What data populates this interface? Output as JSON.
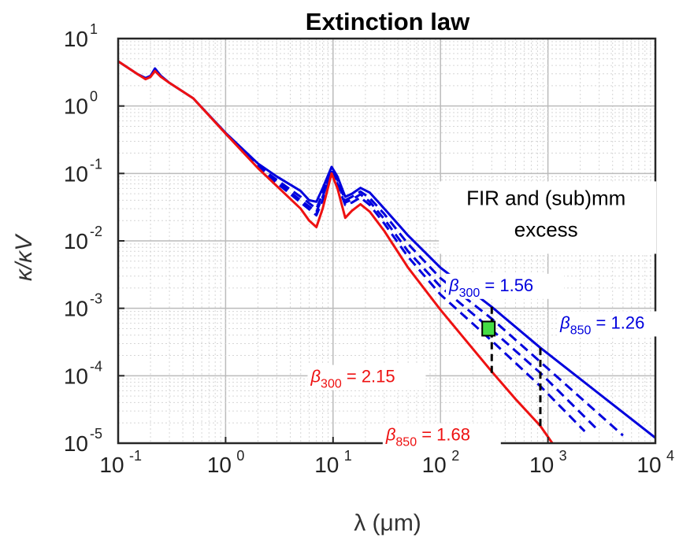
{
  "chart_data": {
    "type": "line",
    "title": "Extinction law",
    "xlabel": "λ (μm)",
    "ylabel": "κ/κV",
    "xscale": "log",
    "yscale": "log",
    "xlim": [
      0.1,
      10000
    ],
    "ylim": [
      1e-05,
      10
    ],
    "grid": true,
    "x_ticks": [
      {
        "base": "10",
        "exp": "-1"
      },
      {
        "base": "10",
        "exp": "0"
      },
      {
        "base": "10",
        "exp": "1"
      },
      {
        "base": "10",
        "exp": "2"
      },
      {
        "base": "10",
        "exp": "3"
      },
      {
        "base": "10",
        "exp": "4"
      }
    ],
    "y_ticks": [
      {
        "base": "10",
        "exp": "-5"
      },
      {
        "base": "10",
        "exp": "-4"
      },
      {
        "base": "10",
        "exp": "-3"
      },
      {
        "base": "10",
        "exp": "-2"
      },
      {
        "base": "10",
        "exp": "-1"
      },
      {
        "base": "10",
        "exp": "0"
      },
      {
        "base": "10",
        "exp": "1"
      }
    ],
    "colors": {
      "blue": "#0000dd",
      "red": "#ee1111",
      "marker": "#44dd44"
    },
    "series": [
      {
        "color": "blue",
        "style": "solid",
        "points": [
          [
            0.1,
            4.6
          ],
          [
            0.15,
            3.0
          ],
          [
            0.18,
            2.6
          ],
          [
            0.2,
            2.8
          ],
          [
            0.22,
            3.6
          ],
          [
            0.25,
            2.8
          ],
          [
            0.3,
            2.2
          ],
          [
            0.5,
            1.3
          ],
          [
            1,
            0.4
          ],
          [
            2,
            0.14
          ],
          [
            3,
            0.09
          ],
          [
            5,
            0.055
          ],
          [
            6,
            0.04
          ],
          [
            7,
            0.038
          ],
          [
            8,
            0.06
          ],
          [
            9.7,
            0.125
          ],
          [
            11,
            0.09
          ],
          [
            13,
            0.045
          ],
          [
            15,
            0.05
          ],
          [
            18,
            0.061
          ],
          [
            22,
            0.052
          ],
          [
            30,
            0.03
          ],
          [
            50,
            0.012
          ],
          [
            100,
            0.004
          ],
          [
            300,
            0.00105
          ],
          [
            850,
            0.00026
          ],
          [
            10000,
            1.2e-05
          ]
        ]
      },
      {
        "color": "blue",
        "style": "dashed",
        "points": [
          [
            1,
            0.39
          ],
          [
            2,
            0.13
          ],
          [
            3,
            0.08
          ],
          [
            5,
            0.045
          ],
          [
            7,
            0.03
          ],
          [
            8,
            0.05
          ],
          [
            9.7,
            0.115
          ],
          [
            11,
            0.08
          ],
          [
            13,
            0.04
          ],
          [
            15,
            0.045
          ],
          [
            18,
            0.054
          ],
          [
            22,
            0.043
          ],
          [
            30,
            0.025
          ],
          [
            50,
            0.009
          ],
          [
            100,
            0.0028
          ],
          [
            300,
            0.0007
          ],
          [
            850,
            0.00016
          ],
          [
            5000,
            1.3e-05
          ]
        ]
      },
      {
        "color": "blue",
        "style": "dashed",
        "points": [
          [
            1,
            0.39
          ],
          [
            2,
            0.13
          ],
          [
            3,
            0.075
          ],
          [
            5,
            0.04
          ],
          [
            7,
            0.027
          ],
          [
            8,
            0.045
          ],
          [
            9.7,
            0.11
          ],
          [
            11,
            0.075
          ],
          [
            13,
            0.037
          ],
          [
            15,
            0.041
          ],
          [
            18,
            0.049
          ],
          [
            22,
            0.038
          ],
          [
            30,
            0.021
          ],
          [
            50,
            0.007
          ],
          [
            100,
            0.0021
          ],
          [
            300,
            0.00048
          ],
          [
            850,
            0.00011
          ],
          [
            3000,
            1.5e-05
          ]
        ]
      },
      {
        "color": "blue",
        "style": "dashed",
        "points": [
          [
            1,
            0.39
          ],
          [
            2,
            0.13
          ],
          [
            3,
            0.072
          ],
          [
            5,
            0.037
          ],
          [
            7,
            0.024
          ],
          [
            8,
            0.04
          ],
          [
            9.7,
            0.105
          ],
          [
            11,
            0.07
          ],
          [
            13,
            0.034
          ],
          [
            15,
            0.037
          ],
          [
            18,
            0.044
          ],
          [
            22,
            0.034
          ],
          [
            30,
            0.018
          ],
          [
            50,
            0.0058
          ],
          [
            100,
            0.0016
          ],
          [
            300,
            0.00033
          ],
          [
            850,
            7e-05
          ],
          [
            2200,
            1.5e-05
          ]
        ]
      },
      {
        "color": "red",
        "style": "solid",
        "points": [
          [
            0.1,
            4.6
          ],
          [
            0.15,
            3.0
          ],
          [
            0.18,
            2.5
          ],
          [
            0.2,
            2.7
          ],
          [
            0.22,
            3.3
          ],
          [
            0.25,
            2.7
          ],
          [
            0.3,
            2.2
          ],
          [
            0.5,
            1.3
          ],
          [
            1,
            0.39
          ],
          [
            2,
            0.12
          ],
          [
            3,
            0.065
          ],
          [
            5,
            0.03
          ],
          [
            6,
            0.02
          ],
          [
            7,
            0.016
          ],
          [
            8,
            0.03
          ],
          [
            9.7,
            0.1
          ],
          [
            11,
            0.06
          ],
          [
            13,
            0.022
          ],
          [
            15,
            0.028
          ],
          [
            18,
            0.035
          ],
          [
            22,
            0.027
          ],
          [
            30,
            0.014
          ],
          [
            50,
            0.004
          ],
          [
            100,
            0.00095
          ],
          [
            200,
            0.00025
          ],
          [
            300,
            0.000115
          ],
          [
            500,
            4.5e-05
          ],
          [
            850,
            1.8e-05
          ],
          [
            1100,
            1e-05
          ]
        ]
      }
    ],
    "marker": {
      "x": 280,
      "y": 0.0005
    },
    "vlines": [
      {
        "x": 300,
        "y_from": 0.00011,
        "y_to": 0.00105
      },
      {
        "x": 850,
        "y_from": 1.8e-05,
        "y_to": 0.00026
      }
    ],
    "annotations": [
      {
        "id": "beta300-blue",
        "color": "blue",
        "sym": "β",
        "sub": "300",
        "val": " = 1.56",
        "x": 120,
        "y": 0.0018
      },
      {
        "id": "beta850-blue",
        "color": "blue",
        "sym": "β",
        "sub": "850",
        "val": " = 1.26",
        "x": 1300,
        "y": 0.0005
      },
      {
        "id": "beta300-red",
        "color": "red",
        "sym": "β",
        "sub": "300",
        "val": " = 2.15",
        "x": 6.2,
        "y": 8e-05
      },
      {
        "id": "beta850-red",
        "color": "red",
        "sym": "β",
        "sub": "850",
        "val": " = 1.68",
        "x": 31,
        "y": 1.1e-05
      }
    ],
    "note": {
      "lines": [
        "FIR and (sub)mm",
        "excess"
      ],
      "x": 100,
      "y": 0.04
    }
  }
}
